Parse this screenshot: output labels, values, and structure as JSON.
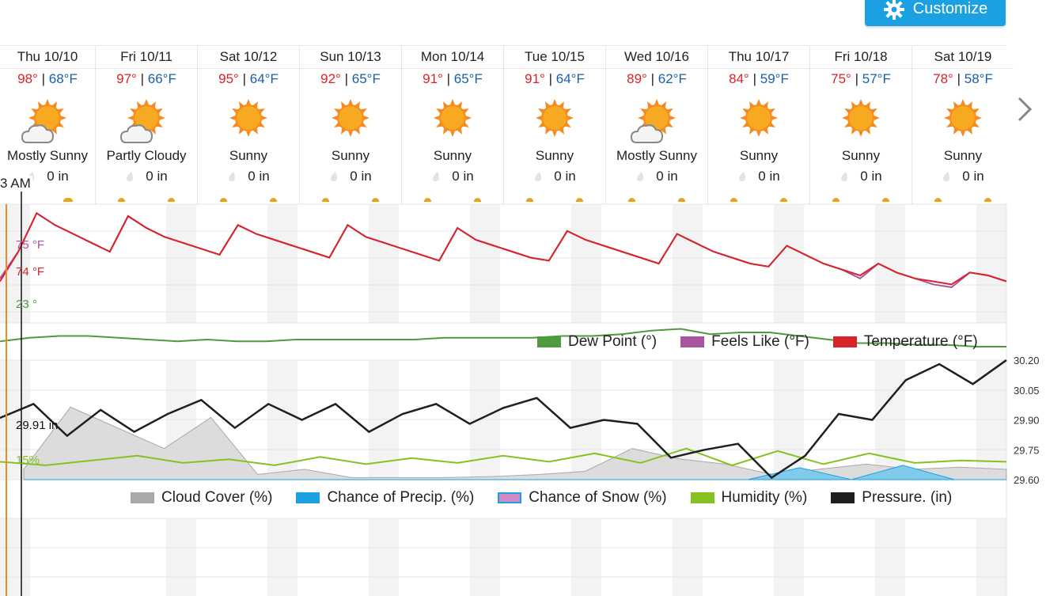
{
  "toolbar": {
    "customize_label": "Customize"
  },
  "days": [
    {
      "name": "Thu 10/10",
      "hi": "98°",
      "lo": "68°F",
      "cond": "Mostly Sunny",
      "precip": "0 in",
      "icon": "sun-cloud-icon"
    },
    {
      "name": "Fri 10/11",
      "hi": "97°",
      "lo": "66°F",
      "cond": "Partly Cloudy",
      "precip": "0 in",
      "icon": "sun-cloud-icon"
    },
    {
      "name": "Sat 10/12",
      "hi": "95°",
      "lo": "64°F",
      "cond": "Sunny",
      "precip": "0 in",
      "icon": "sun-icon"
    },
    {
      "name": "Sun 10/13",
      "hi": "92°",
      "lo": "65°F",
      "cond": "Sunny",
      "precip": "0 in",
      "icon": "sun-icon"
    },
    {
      "name": "Mon 10/14",
      "hi": "91°",
      "lo": "65°F",
      "cond": "Sunny",
      "precip": "0 in",
      "icon": "sun-icon"
    },
    {
      "name": "Tue 10/15",
      "hi": "91°",
      "lo": "64°F",
      "cond": "Sunny",
      "precip": "0 in",
      "icon": "sun-icon"
    },
    {
      "name": "Wed 10/16",
      "hi": "89°",
      "lo": "62°F",
      "cond": "Mostly Sunny",
      "precip": "0 in",
      "icon": "sun-cloud-icon"
    },
    {
      "name": "Thu 10/17",
      "hi": "84°",
      "lo": "59°F",
      "cond": "Sunny",
      "precip": "0 in",
      "icon": "sun-icon"
    },
    {
      "name": "Fri 10/18",
      "hi": "75°",
      "lo": "57°F",
      "cond": "Sunny",
      "precip": "0 in",
      "icon": "sun-icon"
    },
    {
      "name": "Sat 10/19",
      "hi": "78°",
      "lo": "58°F",
      "cond": "Sunny",
      "precip": "0 in",
      "icon": "sun-icon"
    }
  ],
  "sep": "|",
  "current_time": "3 AM",
  "colors": {
    "temperature": "#d8232a",
    "feels_like": "#a855a0",
    "dew_point": "#4f9a3f",
    "cloud": "#a9a9a9",
    "precip": "#1ba1e2",
    "snow": "#d08ac8",
    "humidity": "#86c21f",
    "pressure": "#1f1f1f",
    "now_line": "#f08a24"
  },
  "chart_data": [
    {
      "type": "line",
      "legend": [
        "Dew Point (°)",
        "Feels Like (°F)",
        "Temperature (°F)"
      ],
      "cursor_labels": {
        "feels_like": "75 °F",
        "temperature": "74 °F",
        "dew_point": "23 °"
      },
      "series": [
        {
          "name": "Temperature (°F)",
          "values": [
            74,
            84,
            97,
            93,
            90,
            87,
            84,
            96,
            92,
            89,
            87,
            85,
            83,
            93,
            90,
            88,
            86,
            84,
            82,
            93,
            89,
            87,
            85,
            83,
            81,
            92,
            88,
            86,
            84,
            82,
            81,
            91,
            88,
            86,
            84,
            82,
            80,
            90,
            87,
            84,
            82,
            80,
            79,
            86,
            83,
            80,
            78,
            76,
            80,
            77,
            75,
            74,
            73,
            77,
            76,
            74
          ]
        },
        {
          "name": "Feels Like (°F)",
          "values": [
            75,
            84,
            97,
            93,
            90,
            87,
            84,
            96,
            92,
            89,
            87,
            85,
            83,
            93,
            90,
            88,
            86,
            84,
            82,
            93,
            89,
            87,
            85,
            83,
            81,
            92,
            88,
            86,
            84,
            82,
            81,
            91,
            88,
            86,
            84,
            82,
            80,
            90,
            87,
            84,
            82,
            80,
            79,
            86,
            83,
            80,
            78,
            75,
            80,
            77,
            75,
            73,
            72,
            77,
            76,
            74
          ]
        },
        {
          "name": "Dew Point (°)",
          "values": [
            23,
            25,
            26,
            26,
            25,
            24,
            23,
            24,
            23,
            23,
            24,
            24,
            24,
            24,
            24,
            25,
            25,
            25,
            25,
            26,
            26,
            27,
            29,
            30,
            27,
            28,
            28,
            26,
            24,
            22,
            22,
            21,
            21,
            20,
            20
          ]
        }
      ]
    },
    {
      "type": "line",
      "legend": [
        "Cloud Cover (%)",
        "Chance of Precip. (%)",
        "Chance of Snow (%)",
        "Humidity (%)",
        "Pressure. (in)"
      ],
      "y_right_ticks": [
        "30.20",
        "30.05",
        "29.90",
        "29.75",
        "29.60"
      ],
      "cursor_labels": {
        "pressure": "29.91 in",
        "humidity": "15%"
      },
      "series": [
        {
          "name": "Pressure. (in)",
          "values": [
            29.91,
            29.98,
            29.82,
            29.95,
            29.84,
            29.93,
            30.0,
            29.86,
            29.98,
            29.9,
            29.98,
            29.84,
            29.93,
            29.98,
            29.88,
            29.96,
            30.01,
            29.86,
            29.9,
            29.88,
            29.71,
            29.75,
            29.78,
            29.61,
            29.72,
            29.93,
            29.9,
            30.1,
            30.18,
            30.08,
            30.2
          ]
        },
        {
          "name": "Humidity (%)",
          "values": [
            15,
            12,
            16,
            20,
            14,
            17,
            12,
            19,
            13,
            18,
            14,
            20,
            15,
            22,
            14,
            26,
            12,
            24,
            13,
            22,
            14,
            16,
            15
          ]
        },
        {
          "name": "Cloud Cover (%)",
          "values": [
            10,
            70,
            50,
            30,
            60,
            5,
            10,
            2,
            2,
            2,
            3,
            5,
            8,
            30,
            20,
            15,
            5,
            10,
            15,
            10,
            12,
            10
          ]
        },
        {
          "name": "Chance of Precip. (%)",
          "values": [
            0,
            0,
            0,
            0,
            0,
            0,
            0,
            0,
            0,
            0,
            0,
            0,
            0,
            0,
            0,
            10,
            0,
            12,
            0,
            0
          ]
        }
      ]
    }
  ]
}
